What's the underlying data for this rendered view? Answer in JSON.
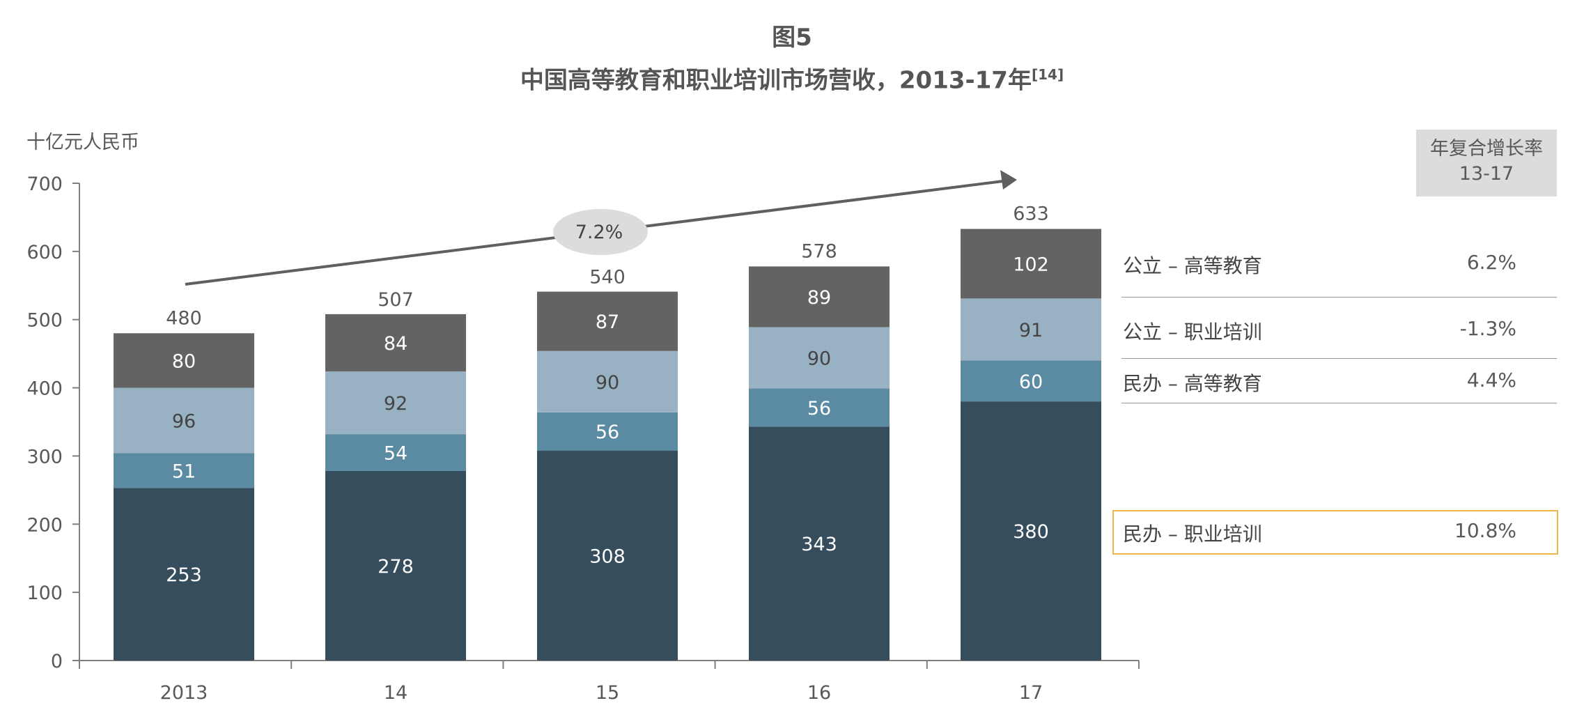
{
  "figure": {
    "number": "图5",
    "title": "中国高等教育和职业培训市场营收，2013-17年",
    "ref": "[14]"
  },
  "axis_unit": "十亿元人民币",
  "cagr_header": {
    "line1": "年复合增长率",
    "line2": "13-17"
  },
  "growth_label": "7.2%",
  "legend": [
    {
      "label": "公立 – 高等教育",
      "value": "6.2%"
    },
    {
      "label": "公立 – 职业培训",
      "value": "-1.3%"
    },
    {
      "label": "民办 – 高等教育",
      "value": "4.4%"
    },
    {
      "label": "民办 – 职业培训",
      "value": "10.8%",
      "highlight": true
    }
  ],
  "chart_data": {
    "type": "bar",
    "stacked": true,
    "categories": [
      "2013",
      "14",
      "15",
      "16",
      "17"
    ],
    "series": [
      {
        "name": "民办 – 职业培训",
        "values": [
          253,
          278,
          308,
          343,
          380
        ],
        "color": "#354d5c"
      },
      {
        "name": "民办 – 高等教育",
        "values": [
          51,
          54,
          56,
          56,
          60
        ],
        "color": "#5b8aa3"
      },
      {
        "name": "公立 – 职业培训",
        "values": [
          96,
          92,
          90,
          90,
          91
        ],
        "color": "#98b2c4"
      },
      {
        "name": "公立 – 高等教育",
        "values": [
          80,
          84,
          87,
          89,
          102
        ],
        "color": "#636363"
      }
    ],
    "totals": [
      480,
      507,
      540,
      578,
      633
    ],
    "ylim": [
      0,
      700
    ],
    "yticks": [
      0,
      100,
      200,
      300,
      400,
      500,
      600,
      700
    ],
    "ylabel": "十亿元人民币",
    "xlabel": "",
    "grid": false
  }
}
